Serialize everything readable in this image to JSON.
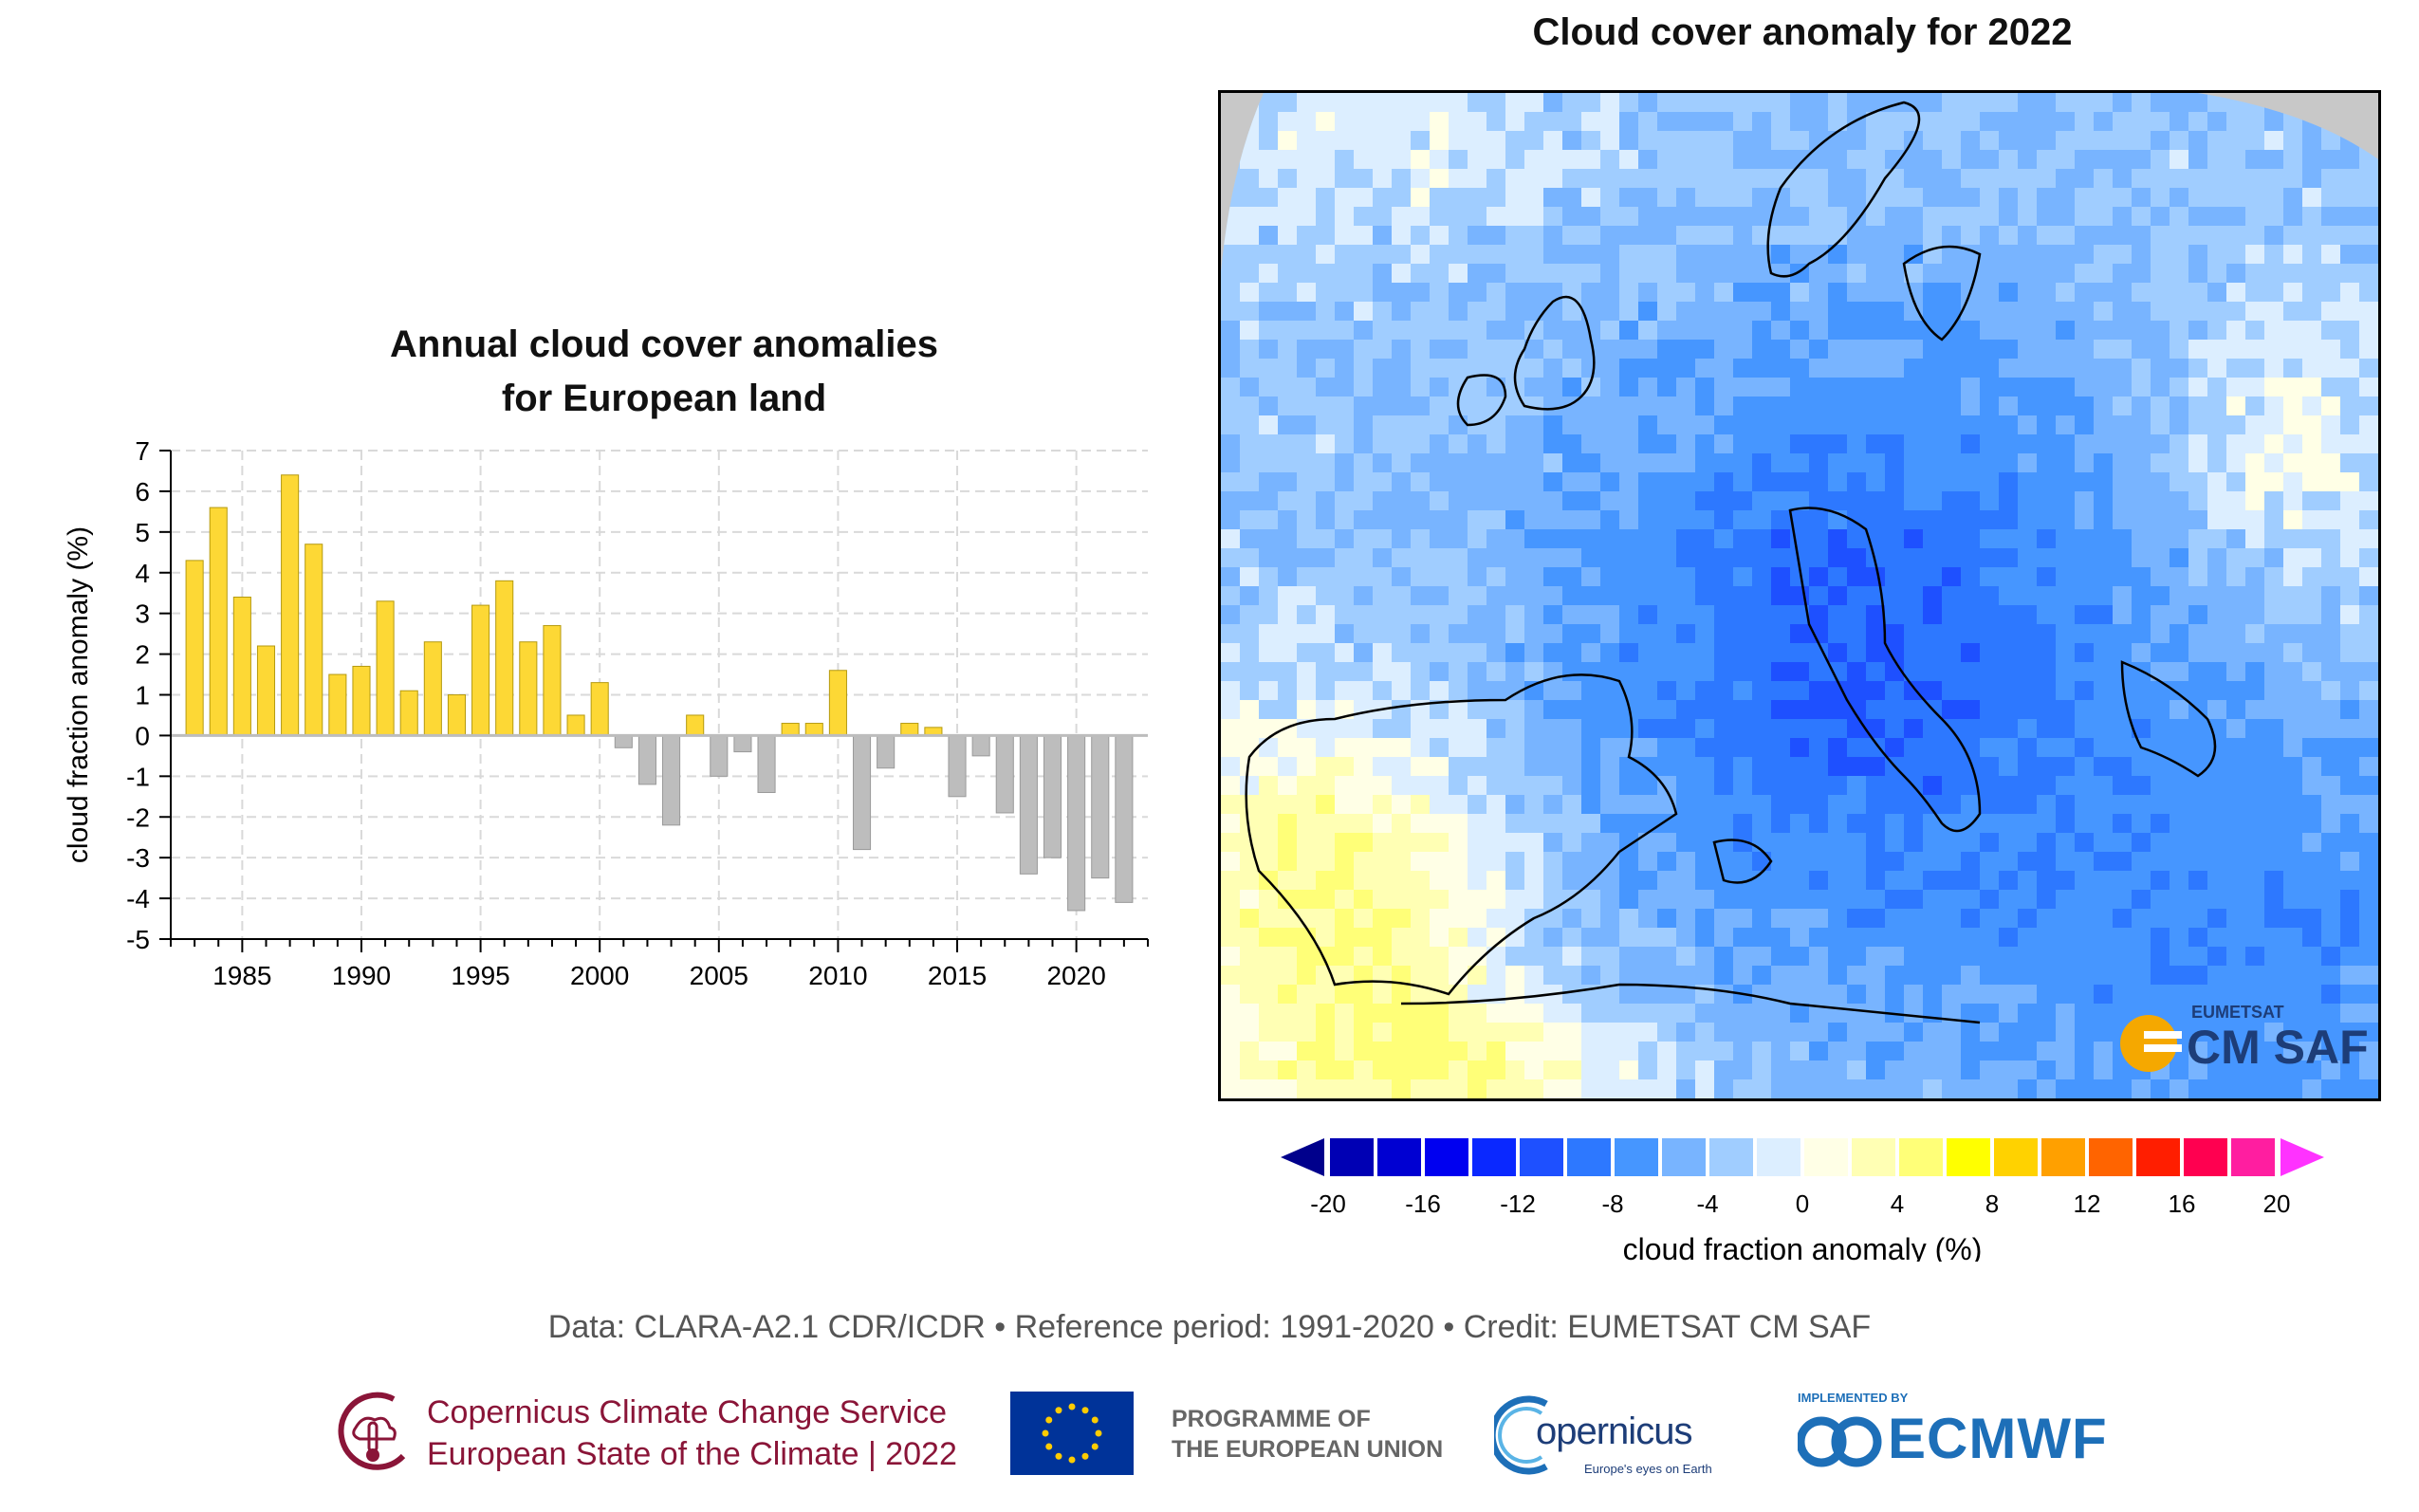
{
  "chart_data": [
    {
      "type": "bar",
      "title_line1": "Annual cloud cover anomalies",
      "title_line2": "for European land",
      "ylabel": "cloud fraction anomaly (%)",
      "ylim": [
        -5,
        7
      ],
      "yticks": [
        -5,
        -4,
        -3,
        -2,
        -1,
        0,
        1,
        2,
        3,
        4,
        5,
        6,
        7
      ],
      "xticks": [
        1985,
        1990,
        1995,
        2000,
        2005,
        2010,
        2015,
        2020
      ],
      "grid": true,
      "years": [
        1983,
        1984,
        1985,
        1986,
        1987,
        1988,
        1989,
        1990,
        1991,
        1992,
        1993,
        1994,
        1995,
        1996,
        1997,
        1998,
        1999,
        2000,
        2001,
        2002,
        2003,
        2004,
        2005,
        2006,
        2007,
        2008,
        2009,
        2010,
        2011,
        2012,
        2013,
        2014,
        2015,
        2016,
        2017,
        2018,
        2019,
        2020,
        2021,
        2022
      ],
      "values": [
        4.3,
        5.6,
        3.4,
        2.2,
        6.4,
        4.7,
        1.5,
        1.7,
        3.3,
        1.1,
        2.3,
        1.0,
        3.2,
        3.8,
        2.3,
        2.7,
        0.5,
        1.3,
        -0.3,
        -1.2,
        -2.2,
        0.5,
        -1.0,
        -0.4,
        -1.4,
        0.3,
        0.3,
        1.6,
        -2.8,
        -0.8,
        0.3,
        0.2,
        -1.5,
        -0.5,
        -1.9,
        -3.4,
        -3.0,
        -4.3,
        -3.5,
        -4.1
      ],
      "positive_color": "#fdd835",
      "negative_color": "#bdbdbd"
    },
    {
      "type": "heatmap",
      "title": "Cloud cover anomaly for 2022",
      "colorbar_label": "cloud fraction anomaly (%)",
      "colorbar_ticks": [
        -20,
        -16,
        -12,
        -8,
        -4,
        0,
        4,
        8,
        12,
        16,
        20
      ],
      "colorbar_colors": [
        "#0000b4",
        "#0000d2",
        "#0000f0",
        "#0a28ff",
        "#1e50ff",
        "#2d78ff",
        "#4696ff",
        "#78b4ff",
        "#a0cdff",
        "#dceeff",
        "#ffffe6",
        "#ffffb4",
        "#ffff78",
        "#ffff00",
        "#ffd200",
        "#ffa000",
        "#ff6400",
        "#ff1e00",
        "#ff0050",
        "#ff1ea0"
      ],
      "colorbar_low_color": "#00008c",
      "colorbar_high_color": "#ff32ff"
    }
  ],
  "footer": {
    "credit": "Data: CLARA-A2.1 CDR/ICDR • Reference period: 1991-2020 • Credit: EUMETSAT CM SAF",
    "c3s_line1": "Copernicus Climate Change Service",
    "c3s_line2": "European State of the Climate | 2022",
    "eu_text": "PROGRAMME OF\nTHE EUROPEAN UNION",
    "copernicus_name": "opernicus",
    "copernicus_tagline": "Europe's eyes on Earth",
    "ecmwf_implemented": "IMPLEMENTED BY",
    "ecmwf_name": "ECMWF"
  },
  "map": {
    "eumetsat_label": "EUMETSAT",
    "cmsaf_label": "CM SAF"
  },
  "colors": {
    "c3s_brand": "#8a1538",
    "ecmwf_brand": "#1d6fb8",
    "eu_blue": "#003399",
    "eu_star": "#ffcc00"
  }
}
